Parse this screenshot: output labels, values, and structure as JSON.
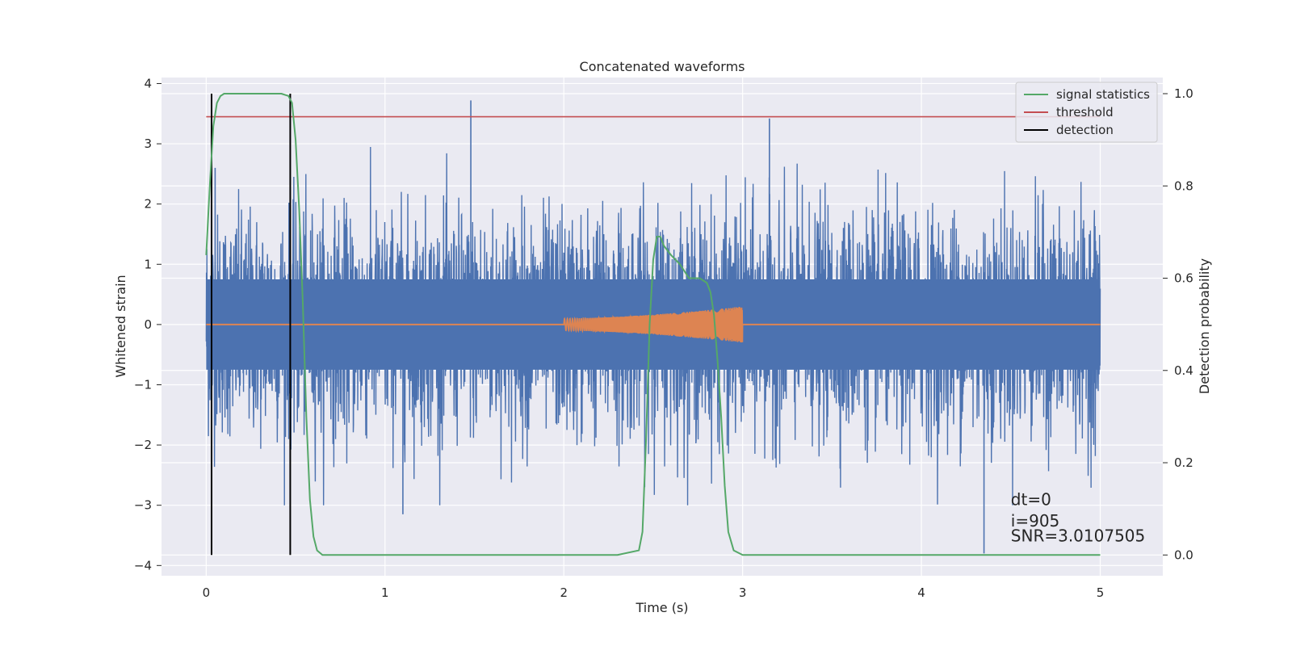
{
  "chart_data": {
    "type": "line",
    "title": "Concatenated waveforms",
    "xlabel": "Time (s)",
    "ylabel": "Whitened strain",
    "y2label": "Detection probability",
    "xlim": [
      -0.25,
      5.35
    ],
    "ylim": [
      -4.17,
      4.1
    ],
    "y2lim": [
      -0.045,
      1.035
    ],
    "xticks": [
      0,
      1,
      2,
      3,
      4,
      5
    ],
    "yticks": [
      -4,
      -3,
      -2,
      -1,
      0,
      1,
      2,
      3,
      4
    ],
    "y2ticks": [
      0.0,
      0.2,
      0.4,
      0.6,
      0.8,
      1.0
    ],
    "xtick_labels": [
      "0",
      "1",
      "2",
      "3",
      "4",
      "5"
    ],
    "ytick_labels": [
      "−4",
      "−3",
      "−2",
      "−1",
      "0",
      "1",
      "2",
      "3",
      "4"
    ],
    "y2tick_labels": [
      "0.0",
      "0.2",
      "0.4",
      "0.6",
      "0.8",
      "1.0"
    ],
    "grid": true,
    "legend_position": "top-right",
    "colors": {
      "background": "#eaeaf2",
      "strain": "#4c72b0",
      "injection": "#dd8452",
      "signal_statistics": "#55a868",
      "threshold": "#c44e52",
      "detection": "#000000",
      "grid": "#ffffff"
    },
    "series": [
      {
        "name": "",
        "axis": "left",
        "description_kind": "noise",
        "x_range": [
          0,
          5
        ],
        "envelope_typical": 1.3,
        "peaks": [
          [
            1.48,
            3.72
          ],
          [
            3.15,
            3.42
          ],
          [
            4.35,
            -3.8
          ],
          [
            1.1,
            -3.15
          ],
          [
            0.05,
            2.6
          ]
        ]
      },
      {
        "name": "",
        "axis": "left",
        "description_kind": "chirp",
        "x_range": [
          2.0,
          3.0
        ],
        "amplitude_start": 0.1,
        "amplitude_end": 0.3
      },
      {
        "name": "signal statistics",
        "axis": "right",
        "x": [
          0.0,
          0.02,
          0.04,
          0.06,
          0.08,
          0.1,
          0.15,
          0.3,
          0.42,
          0.46,
          0.48,
          0.5,
          0.52,
          0.54,
          0.56,
          0.58,
          0.6,
          0.62,
          0.65,
          1.0,
          2.0,
          2.3,
          2.42,
          2.44,
          2.46,
          2.48,
          2.5,
          2.52,
          2.54,
          2.56,
          2.6,
          2.65,
          2.7,
          2.76,
          2.8,
          2.82,
          2.84,
          2.86,
          2.88,
          2.9,
          2.92,
          2.95,
          3.0,
          3.5,
          4.0,
          4.5,
          5.0
        ],
        "y": [
          0.65,
          0.8,
          0.93,
          0.98,
          0.995,
          1.0,
          1.0,
          1.0,
          1.0,
          0.995,
          0.98,
          0.9,
          0.75,
          0.55,
          0.3,
          0.12,
          0.04,
          0.01,
          0.0,
          0.0,
          0.0,
          0.0,
          0.01,
          0.05,
          0.25,
          0.5,
          0.64,
          0.69,
          0.69,
          0.67,
          0.65,
          0.63,
          0.6,
          0.6,
          0.59,
          0.57,
          0.52,
          0.42,
          0.3,
          0.15,
          0.05,
          0.01,
          0.0,
          0.0,
          0.0,
          0.0,
          0.0
        ]
      },
      {
        "name": "threshold",
        "axis": "right",
        "x": [
          0,
          5
        ],
        "y": [
          0.95,
          0.95
        ]
      },
      {
        "name": "detection",
        "axis": "right",
        "vlines": [
          0.03,
          0.47
        ],
        "ymin": 0.0,
        "ymax": 1.0
      }
    ],
    "annotations": [
      {
        "text": "dt=0",
        "x": 4.5,
        "y": -3.0
      },
      {
        "text": "i=905",
        "x": 4.5,
        "y": -3.35
      },
      {
        "text": "SNR=3.0107505",
        "x": 4.5,
        "y": -3.6
      }
    ]
  }
}
